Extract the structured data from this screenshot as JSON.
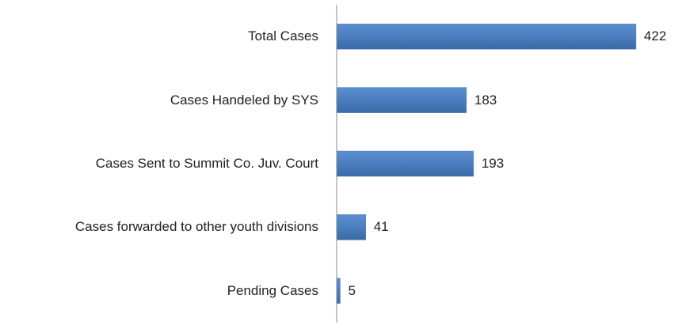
{
  "chart_data": {
    "type": "barh",
    "categories": [
      "Total Cases",
      "Cases Handeled by SYS",
      "Cases Sent to Summit Co. Juv. Court",
      "Cases forwarded to other youth divisions",
      "Pending Cases"
    ],
    "values": [
      422,
      183,
      193,
      41,
      5
    ],
    "color": "#4f81bd",
    "xlim": [
      0,
      450
    ]
  }
}
